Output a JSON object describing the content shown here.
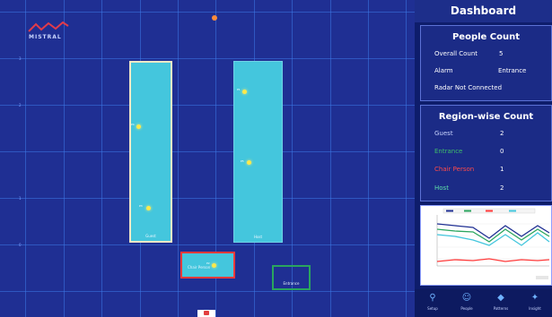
{
  "app": {
    "logo_text": "MISTRAL",
    "colors": {
      "background": "#1f2f93",
      "grid": "#3c78e6",
      "sensor": "#ff8c3a",
      "person": "#ffe94a"
    }
  },
  "floor_plan": {
    "regions": [
      {
        "id": "guest",
        "label": "Guest",
        "border": "#f2e8c6"
      },
      {
        "id": "host",
        "label": "Host",
        "border": "#43c6dd"
      },
      {
        "id": "chair-person",
        "label": "Chair Person",
        "border": "#ff3a3a"
      },
      {
        "id": "entrance",
        "label": "Entrance",
        "border": "#2aa55e"
      }
    ],
    "people_labels": [
      "P4",
      "P3",
      "P1",
      "P5",
      "P2"
    ]
  },
  "dashboard": {
    "title": "Dashboard",
    "people_count": {
      "heading": "People Count",
      "overall_label": "Overall Count",
      "overall_value": "5",
      "alarm_label": "Alarm",
      "alarm_value": "Entrance",
      "radar_status": "Radar Not Connected"
    },
    "region_count": {
      "heading": "Region-wise Count",
      "rows": [
        {
          "label": "Guest",
          "value": "2",
          "color": "#c9d4ff"
        },
        {
          "label": "Entrance",
          "value": "0",
          "color": "#3fbf6a"
        },
        {
          "label": "Chair Person",
          "value": "1",
          "color": "#ff4a4a"
        },
        {
          "label": "Host",
          "value": "2",
          "color": "#5fe0a8"
        }
      ]
    },
    "footer": [
      "Setup",
      "People",
      "Patterns",
      "Insight"
    ]
  }
}
